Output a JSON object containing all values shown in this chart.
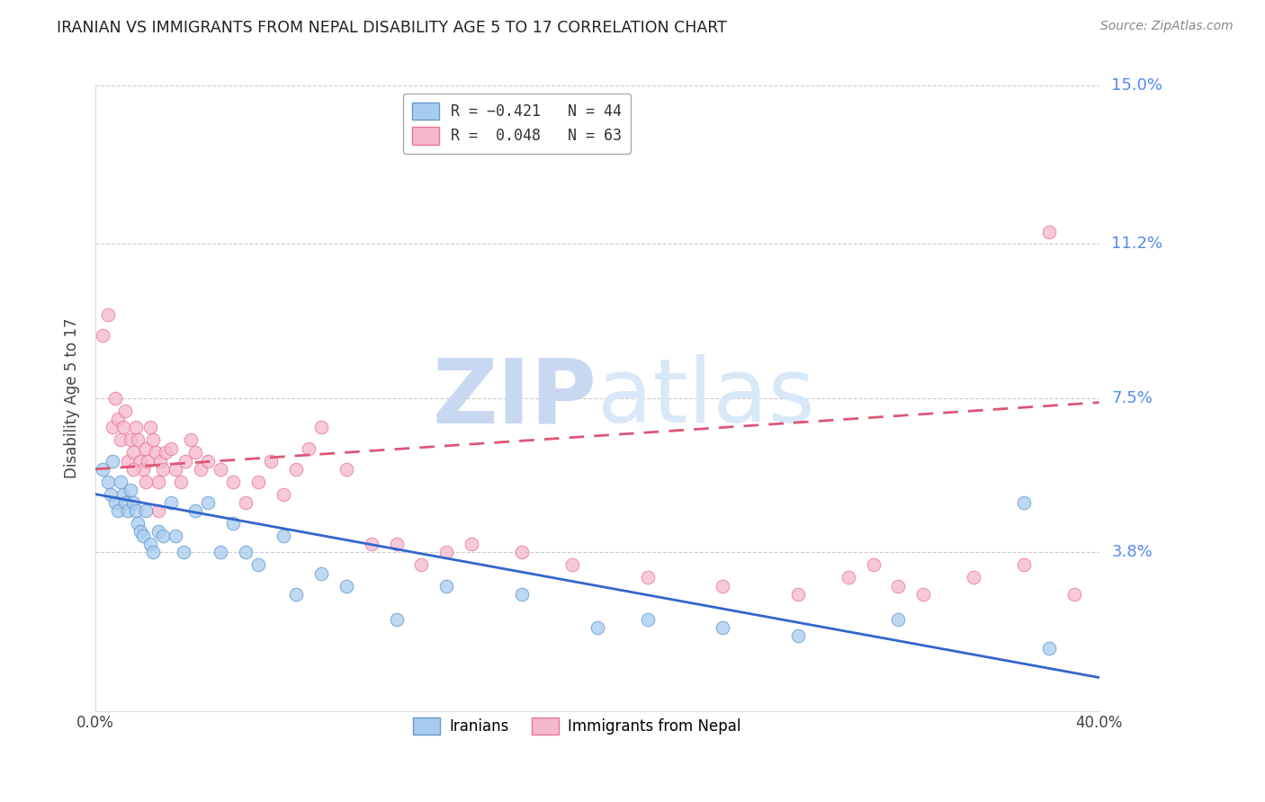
{
  "title": "IRANIAN VS IMMIGRANTS FROM NEPAL DISABILITY AGE 5 TO 17 CORRELATION CHART",
  "source": "Source: ZipAtlas.com",
  "ylabel": "Disability Age 5 to 17",
  "xlim": [
    0.0,
    0.4
  ],
  "ylim": [
    0.0,
    0.15
  ],
  "xticks": [
    0.0,
    0.05,
    0.1,
    0.15,
    0.2,
    0.25,
    0.3,
    0.35,
    0.4
  ],
  "xtick_labels": [
    "0.0%",
    "",
    "",
    "",
    "",
    "",
    "",
    "",
    "40.0%"
  ],
  "ytick_labels_right": [
    "3.8%",
    "7.5%",
    "11.2%",
    "15.0%"
  ],
  "ytick_values_right": [
    0.038,
    0.075,
    0.112,
    0.15
  ],
  "grid_color": "#cccccc",
  "background_color": "#ffffff",
  "watermark_zip": "ZIP",
  "watermark_atlas": "atlas",
  "watermark_color": "#c8d8f0",
  "iranians_color": "#a8ccf0",
  "iranians_edge_color": "#6699cc",
  "nepal_color": "#f5b8cc",
  "nepal_edge_color": "#e87799",
  "iranians_line_color": "#3366cc",
  "nepal_line_color": "#dd5577",
  "iran_line_x0": 0.0,
  "iran_line_y0": 0.052,
  "iran_line_x1": 0.4,
  "iran_line_y1": 0.008,
  "nepal_line_x0": 0.0,
  "nepal_line_y0": 0.058,
  "nepal_line_x1": 0.4,
  "nepal_line_y1": 0.074,
  "iranians_scatter_x": [
    0.003,
    0.005,
    0.006,
    0.007,
    0.008,
    0.009,
    0.01,
    0.011,
    0.012,
    0.013,
    0.014,
    0.015,
    0.016,
    0.017,
    0.018,
    0.019,
    0.02,
    0.022,
    0.023,
    0.025,
    0.027,
    0.03,
    0.032,
    0.035,
    0.04,
    0.045,
    0.05,
    0.055,
    0.06,
    0.065,
    0.075,
    0.08,
    0.09,
    0.1,
    0.12,
    0.14,
    0.17,
    0.2,
    0.22,
    0.25,
    0.28,
    0.32,
    0.37,
    0.38
  ],
  "iranians_scatter_y": [
    0.058,
    0.055,
    0.052,
    0.06,
    0.05,
    0.048,
    0.055,
    0.052,
    0.05,
    0.048,
    0.053,
    0.05,
    0.048,
    0.045,
    0.043,
    0.042,
    0.048,
    0.04,
    0.038,
    0.043,
    0.042,
    0.05,
    0.042,
    0.038,
    0.048,
    0.05,
    0.038,
    0.045,
    0.038,
    0.035,
    0.042,
    0.028,
    0.033,
    0.03,
    0.022,
    0.03,
    0.028,
    0.02,
    0.022,
    0.02,
    0.018,
    0.022,
    0.05,
    0.015
  ],
  "nepal_scatter_x": [
    0.003,
    0.005,
    0.007,
    0.008,
    0.009,
    0.01,
    0.011,
    0.012,
    0.013,
    0.014,
    0.015,
    0.016,
    0.017,
    0.018,
    0.019,
    0.02,
    0.021,
    0.022,
    0.023,
    0.024,
    0.025,
    0.026,
    0.027,
    0.028,
    0.03,
    0.032,
    0.034,
    0.036,
    0.038,
    0.04,
    0.042,
    0.045,
    0.05,
    0.055,
    0.06,
    0.065,
    0.07,
    0.075,
    0.08,
    0.085,
    0.09,
    0.1,
    0.11,
    0.12,
    0.13,
    0.14,
    0.15,
    0.17,
    0.19,
    0.22,
    0.25,
    0.28,
    0.3,
    0.31,
    0.32,
    0.33,
    0.35,
    0.37,
    0.38,
    0.39,
    0.015,
    0.02,
    0.025
  ],
  "nepal_scatter_y": [
    0.09,
    0.095,
    0.068,
    0.075,
    0.07,
    0.065,
    0.068,
    0.072,
    0.06,
    0.065,
    0.062,
    0.068,
    0.065,
    0.06,
    0.058,
    0.063,
    0.06,
    0.068,
    0.065,
    0.062,
    0.055,
    0.06,
    0.058,
    0.062,
    0.063,
    0.058,
    0.055,
    0.06,
    0.065,
    0.062,
    0.058,
    0.06,
    0.058,
    0.055,
    0.05,
    0.055,
    0.06,
    0.052,
    0.058,
    0.063,
    0.068,
    0.058,
    0.04,
    0.04,
    0.035,
    0.038,
    0.04,
    0.038,
    0.035,
    0.032,
    0.03,
    0.028,
    0.032,
    0.035,
    0.03,
    0.028,
    0.032,
    0.035,
    0.115,
    0.028,
    0.058,
    0.055,
    0.048
  ]
}
